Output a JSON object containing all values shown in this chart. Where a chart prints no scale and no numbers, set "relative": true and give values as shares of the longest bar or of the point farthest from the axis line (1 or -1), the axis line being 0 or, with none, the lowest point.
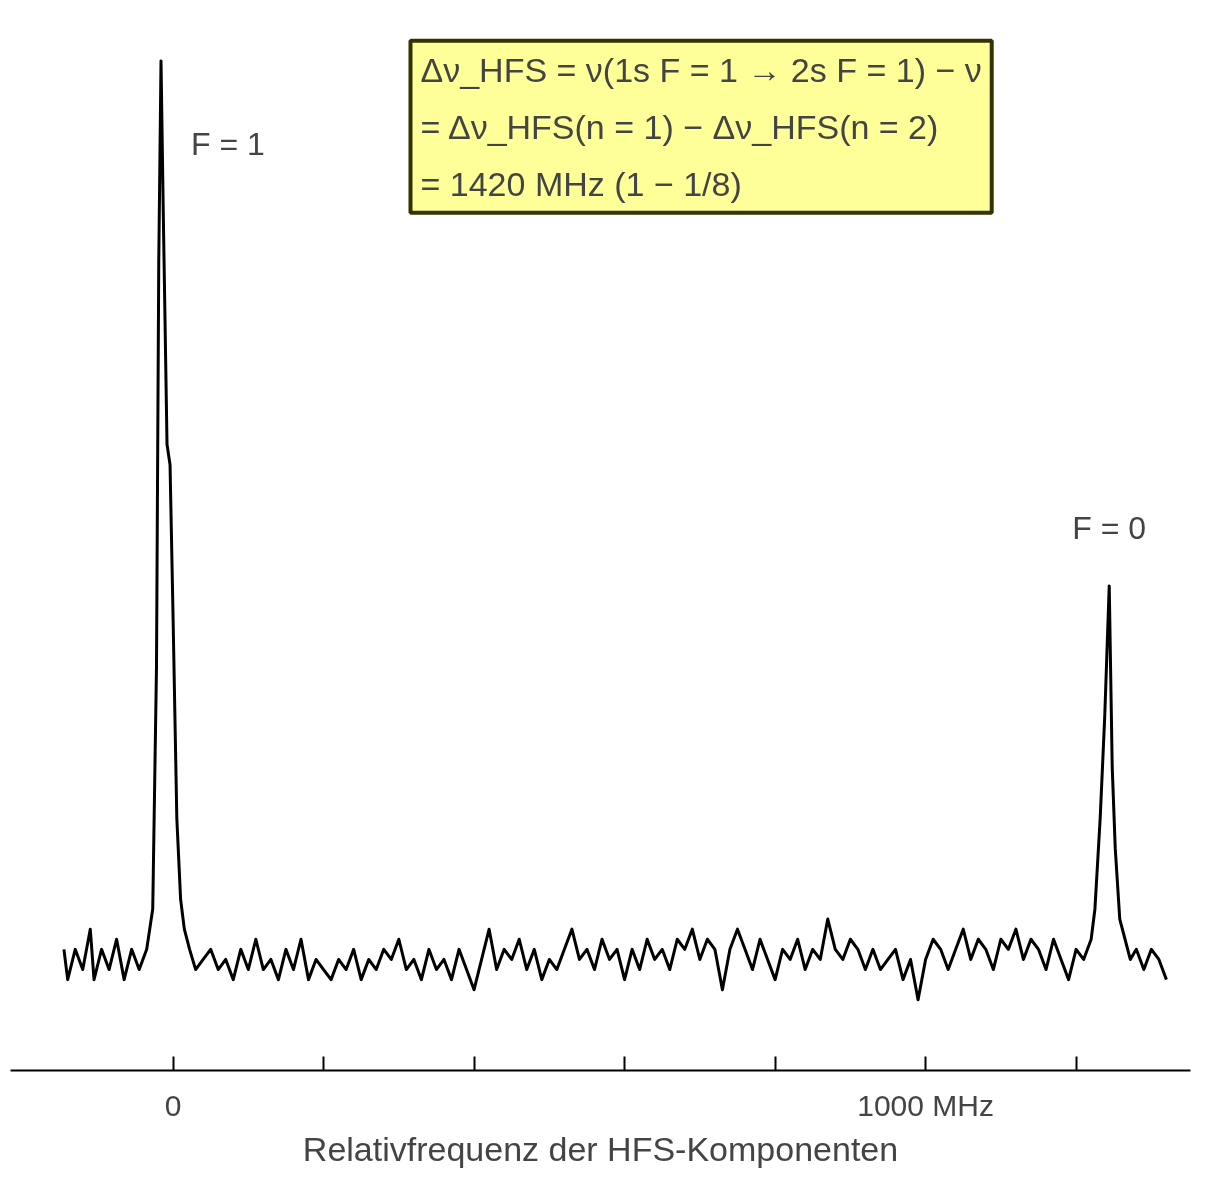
{
  "chart_data": {
    "type": "line",
    "relative": true,
    "xlabel": "Relativfrequenz der HFS-Komponenten",
    "xlim": [
      -216,
      1352
    ],
    "xticks": [
      0,
      {
        "value": 200,
        "label": null
      },
      {
        "value": 400,
        "label": null
      },
      {
        "value": 600,
        "label": null
      },
      {
        "value": 800,
        "label": null
      },
      {
        "value": 1000,
        "label": "1000 MHz"
      },
      {
        "value": 1200,
        "label": null
      }
    ],
    "tick_labels": "x",
    "grid": false,
    "line_style": "solid",
    "x": [
      -145,
      -140,
      -130,
      -120,
      -110,
      -105,
      -95,
      -85,
      -75,
      -65,
      -55,
      -45,
      -35,
      -27,
      -22,
      -19,
      -16,
      -13,
      -8,
      -4,
      0,
      5,
      10,
      15,
      22,
      30,
      40,
      50,
      60,
      70,
      80,
      90,
      100,
      110,
      120,
      130,
      140,
      150,
      160,
      170,
      180,
      190,
      200,
      210,
      220,
      230,
      240,
      250,
      260,
      270,
      280,
      290,
      300,
      310,
      320,
      330,
      340,
      350,
      360,
      370,
      380,
      390,
      400,
      410,
      420,
      430,
      440,
      450,
      460,
      470,
      480,
      490,
      500,
      510,
      520,
      530,
      540,
      550,
      560,
      570,
      580,
      590,
      600,
      610,
      620,
      630,
      640,
      650,
      660,
      670,
      680,
      690,
      700,
      710,
      720,
      730,
      740,
      750,
      760,
      770,
      780,
      790,
      800,
      810,
      820,
      830,
      840,
      850,
      860,
      870,
      880,
      890,
      900,
      910,
      920,
      930,
      940,
      950,
      960,
      970,
      980,
      990,
      1000,
      1010,
      1020,
      1030,
      1040,
      1050,
      1060,
      1070,
      1080,
      1090,
      1100,
      1110,
      1120,
      1130,
      1140,
      1150,
      1160,
      1170,
      1180,
      1190,
      1200,
      1210,
      1220,
      1225,
      1232,
      1238,
      1244,
      1248,
      1252,
      1258,
      1265,
      1272,
      1280,
      1290,
      1300,
      1310,
      1320
    ],
    "series": [
      {
        "color": "#000000",
        "values": [
          0.12,
          0.09,
          0.12,
          0.1,
          0.14,
          0.09,
          0.12,
          0.1,
          0.13,
          0.09,
          0.12,
          0.1,
          0.12,
          0.16,
          0.4,
          0.8,
          1.0,
          0.85,
          0.62,
          0.6,
          0.45,
          0.25,
          0.17,
          0.14,
          0.12,
          0.1,
          0.11,
          0.12,
          0.1,
          0.11,
          0.09,
          0.12,
          0.1,
          0.13,
          0.1,
          0.11,
          0.09,
          0.12,
          0.1,
          0.13,
          0.09,
          0.11,
          0.1,
          0.09,
          0.11,
          0.1,
          0.12,
          0.09,
          0.11,
          0.1,
          0.12,
          0.11,
          0.13,
          0.1,
          0.11,
          0.09,
          0.12,
          0.1,
          0.11,
          0.09,
          0.12,
          0.1,
          0.08,
          0.11,
          0.14,
          0.1,
          0.12,
          0.11,
          0.13,
          0.1,
          0.12,
          0.09,
          0.11,
          0.1,
          0.12,
          0.14,
          0.11,
          0.12,
          0.1,
          0.13,
          0.11,
          0.12,
          0.09,
          0.12,
          0.1,
          0.13,
          0.11,
          0.12,
          0.1,
          0.13,
          0.12,
          0.14,
          0.11,
          0.13,
          0.12,
          0.08,
          0.12,
          0.14,
          0.12,
          0.1,
          0.13,
          0.11,
          0.09,
          0.12,
          0.11,
          0.13,
          0.1,
          0.12,
          0.11,
          0.15,
          0.12,
          0.11,
          0.13,
          0.12,
          0.1,
          0.12,
          0.1,
          0.11,
          0.12,
          0.09,
          0.11,
          0.07,
          0.11,
          0.13,
          0.12,
          0.1,
          0.12,
          0.14,
          0.11,
          0.13,
          0.12,
          0.1,
          0.13,
          0.12,
          0.14,
          0.11,
          0.13,
          0.12,
          0.1,
          0.13,
          0.11,
          0.09,
          0.12,
          0.11,
          0.13,
          0.16,
          0.25,
          0.35,
          0.48,
          0.3,
          0.22,
          0.15,
          0.13,
          0.11,
          0.12,
          0.1,
          0.12,
          0.11,
          0.09
        ]
      }
    ],
    "annotations": [
      "F = 1",
      "F = 0",
      "Δν_HFS = ν(1s F = 1 → 2s F = 1) − ν",
      "= Δν_HFS(n = 1) − Δν_HFS(n = 2)",
      "= 1420 MHz (1 − 1/8)"
    ]
  }
}
